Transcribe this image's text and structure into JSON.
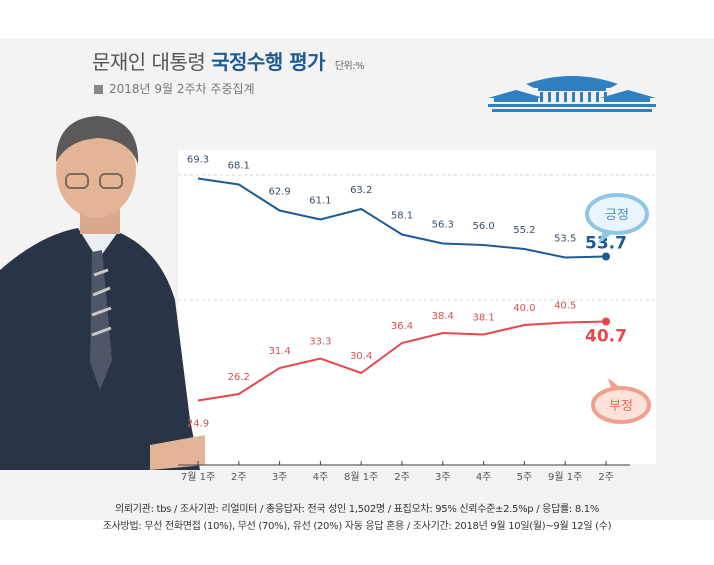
{
  "header": {
    "title_prefix": "문재인 대통령",
    "title_strong": "국정수행 평가",
    "unit": "단위:%",
    "subtitle": "2018년 9월 2주차 주중집계"
  },
  "footer": {
    "line1": "의뢰기관: tbs / 조사기관: 리얼미터 / 총응답자: 전국 성인 1,502명 / 표집오차: 95% 신뢰수준±2.5%p / 응답률: 8.1%",
    "line2": "조사방법: 무선 전화면접 (10%), 무선 (70%), 유선 (20%) 자동 응답 혼용 / 조사기간: 2018년 9월 10일(월)~9월 12일 (수)"
  },
  "icons": [
    "blue-house-icon",
    "president-photo"
  ],
  "chart_data": {
    "type": "line",
    "categories": [
      "7월 1주",
      "2주",
      "3주",
      "4주",
      "8월 1주",
      "2주",
      "3주",
      "4주",
      "5주",
      "9월 1주",
      "2주"
    ],
    "series": [
      {
        "name": "긍정",
        "color": "#1c5b93",
        "values": [
          69.3,
          68.1,
          62.9,
          61.1,
          63.2,
          58.1,
          56.3,
          56.0,
          55.2,
          53.5,
          53.7
        ]
      },
      {
        "name": "부정",
        "color": "#e8474c",
        "values": [
          24.9,
          26.2,
          31.4,
          33.3,
          30.4,
          36.4,
          38.4,
          38.1,
          40.0,
          40.5,
          40.7
        ]
      }
    ],
    "ylim": [
      15,
      80
    ],
    "grid": true
  }
}
